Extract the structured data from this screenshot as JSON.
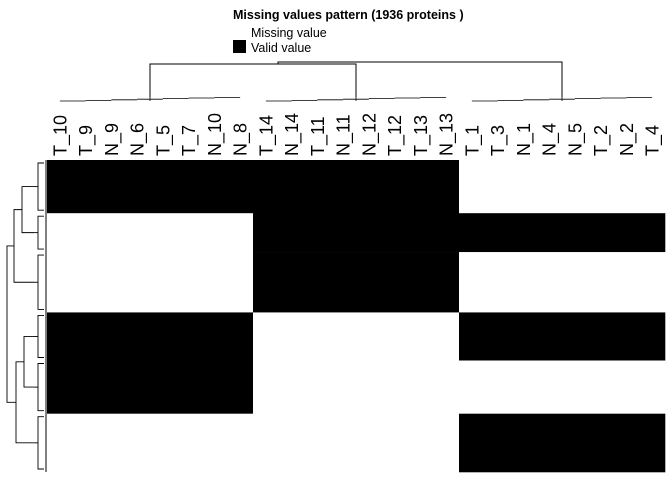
{
  "chart_data": {
    "type": "heatmap",
    "title": "Missing values pattern (1936 proteins )",
    "legend": {
      "placement": "top-left",
      "items": [
        {
          "label": "Missing value",
          "color": "#ffffff"
        },
        {
          "label": "Valid value",
          "color": "#000000"
        }
      ]
    },
    "columns": [
      "T_10",
      "T_9",
      "N_9",
      "N_6",
      "T_5",
      "T_7",
      "N_10",
      "N_8",
      "T_14",
      "N_14",
      "T_11",
      "N_11",
      "N_12",
      "T_12",
      "T_13",
      "N_13",
      "T_1",
      "T_3",
      "N_1",
      "N_4",
      "N_5",
      "T_2",
      "N_2",
      "T_4"
    ],
    "column_groups": [
      {
        "start": 0,
        "end": 7
      },
      {
        "start": 8,
        "end": 15
      },
      {
        "start": 16,
        "end": 23
      }
    ],
    "row_blocks": [
      {
        "rows": 52,
        "pattern": [
          1,
          1,
          0
        ]
      },
      {
        "rows": 38,
        "pattern": [
          0,
          1,
          1
        ]
      },
      {
        "rows": 59,
        "pattern": [
          0,
          1,
          0
        ]
      },
      {
        "rows": 47,
        "pattern": [
          1,
          0,
          1
        ]
      },
      {
        "rows": 52,
        "pattern": [
          1,
          0,
          0
        ]
      },
      {
        "rows": 57,
        "pattern": [
          0,
          0,
          1
        ]
      }
    ],
    "colors": {
      "valid": "#000000",
      "missing": "#ffffff"
    }
  }
}
